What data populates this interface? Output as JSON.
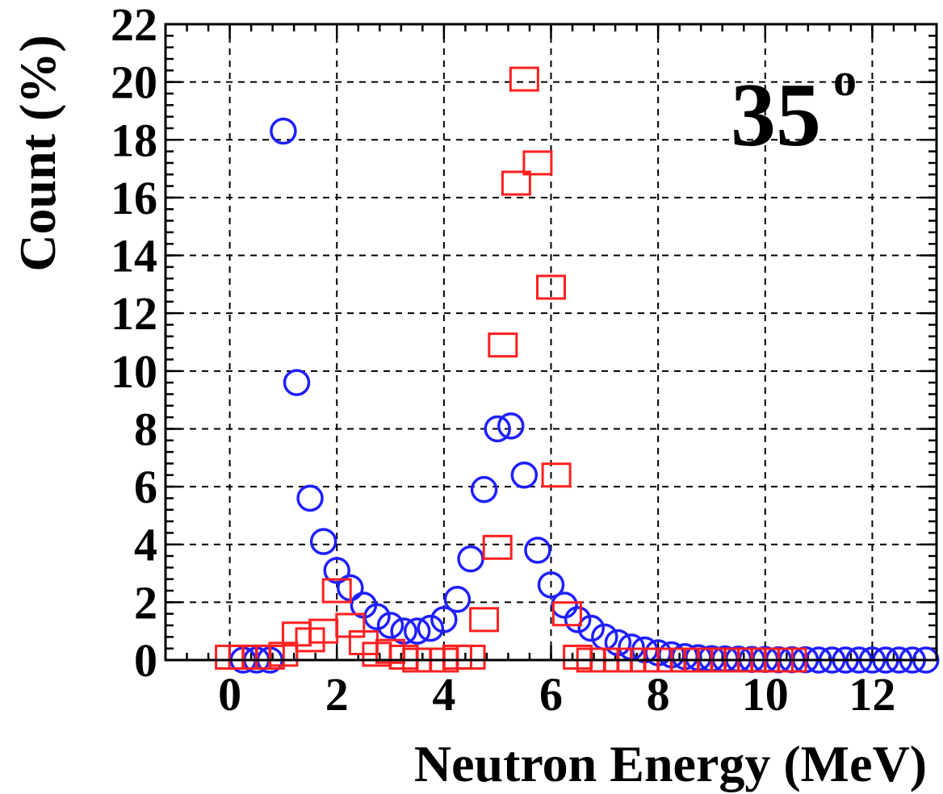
{
  "chart_data": {
    "type": "scatter",
    "title": "",
    "annotation": "35",
    "annotation_degree": "o",
    "xlabel": "Neutron Energy (MeV)",
    "ylabel": "Count (%)",
    "xlim": [
      -1.2,
      13.2
    ],
    "ylim": [
      0,
      22
    ],
    "xticks": [
      0,
      2,
      4,
      6,
      8,
      10,
      12
    ],
    "yticks": [
      0,
      2,
      4,
      6,
      8,
      10,
      12,
      14,
      16,
      18,
      20,
      22
    ],
    "grid": true,
    "series": [
      {
        "marker": "circle",
        "color": "#1f1fff",
        "points": [
          [
            0.25,
            0.0
          ],
          [
            0.5,
            0.0
          ],
          [
            0.75,
            0.0
          ],
          [
            1.0,
            18.3
          ],
          [
            1.25,
            9.6
          ],
          [
            1.5,
            5.6
          ],
          [
            1.75,
            4.1
          ],
          [
            2.0,
            3.1
          ],
          [
            2.25,
            2.5
          ],
          [
            2.5,
            1.9
          ],
          [
            2.75,
            1.5
          ],
          [
            3.0,
            1.2
          ],
          [
            3.25,
            1.0
          ],
          [
            3.5,
            1.0
          ],
          [
            3.75,
            1.1
          ],
          [
            4.0,
            1.4
          ],
          [
            4.25,
            2.1
          ],
          [
            4.5,
            3.5
          ],
          [
            4.75,
            5.9
          ],
          [
            5.0,
            8.0
          ],
          [
            5.25,
            8.1
          ],
          [
            5.5,
            6.4
          ],
          [
            5.75,
            3.8
          ],
          [
            6.0,
            2.6
          ],
          [
            6.25,
            1.9
          ],
          [
            6.5,
            1.4
          ],
          [
            6.75,
            1.1
          ],
          [
            7.0,
            0.8
          ],
          [
            7.25,
            0.6
          ],
          [
            7.5,
            0.45
          ],
          [
            7.75,
            0.35
          ],
          [
            8.0,
            0.25
          ],
          [
            8.25,
            0.18
          ],
          [
            8.5,
            0.12
          ],
          [
            8.75,
            0.08
          ],
          [
            9.0,
            0.05
          ],
          [
            9.25,
            0.04
          ],
          [
            9.5,
            0.03
          ],
          [
            9.75,
            0.02
          ],
          [
            10.0,
            0.02
          ],
          [
            10.25,
            0.01
          ],
          [
            10.5,
            0.01
          ],
          [
            10.75,
            0.01
          ],
          [
            11.0,
            0.0
          ],
          [
            11.25,
            0.0
          ],
          [
            11.5,
            0.0
          ],
          [
            11.75,
            0.0
          ],
          [
            12.0,
            0.0
          ],
          [
            12.25,
            0.0
          ],
          [
            12.5,
            0.0
          ],
          [
            12.75,
            0.0
          ],
          [
            13.0,
            0.0
          ]
        ]
      },
      {
        "marker": "square",
        "color": "#ff1f1f",
        "points": [
          [
            0.0,
            0.1
          ],
          [
            0.25,
            0.1
          ],
          [
            0.5,
            0.1
          ],
          [
            0.75,
            0.1
          ],
          [
            1.0,
            0.2
          ],
          [
            1.25,
            0.9
          ],
          [
            1.5,
            0.7
          ],
          [
            1.75,
            1.0
          ],
          [
            2.0,
            2.4
          ],
          [
            2.25,
            1.2
          ],
          [
            2.5,
            0.6
          ],
          [
            2.75,
            0.2
          ],
          [
            3.0,
            0.3
          ],
          [
            3.25,
            0.1
          ],
          [
            3.5,
            0.0
          ],
          [
            3.75,
            0.0
          ],
          [
            4.0,
            0.0
          ],
          [
            4.25,
            0.1
          ],
          [
            4.5,
            0.1
          ],
          [
            4.75,
            1.4
          ],
          [
            5.0,
            3.9
          ],
          [
            5.1,
            10.9
          ],
          [
            5.35,
            16.5
          ],
          [
            5.5,
            20.1
          ],
          [
            5.75,
            17.2
          ],
          [
            6.0,
            12.9
          ],
          [
            6.1,
            6.4
          ],
          [
            6.3,
            1.6
          ],
          [
            6.5,
            0.1
          ],
          [
            6.75,
            0.0
          ],
          [
            7.0,
            0.0
          ],
          [
            7.25,
            0.0
          ],
          [
            7.5,
            0.0
          ],
          [
            7.75,
            0.0
          ],
          [
            8.0,
            0.0
          ],
          [
            8.25,
            0.0
          ],
          [
            8.5,
            0.0
          ],
          [
            8.75,
            0.0
          ],
          [
            9.0,
            0.0
          ],
          [
            9.25,
            0.0
          ],
          [
            9.5,
            0.0
          ],
          [
            9.75,
            0.0
          ],
          [
            10.0,
            0.0
          ],
          [
            10.25,
            0.0
          ],
          [
            10.5,
            0.0
          ]
        ]
      }
    ]
  }
}
